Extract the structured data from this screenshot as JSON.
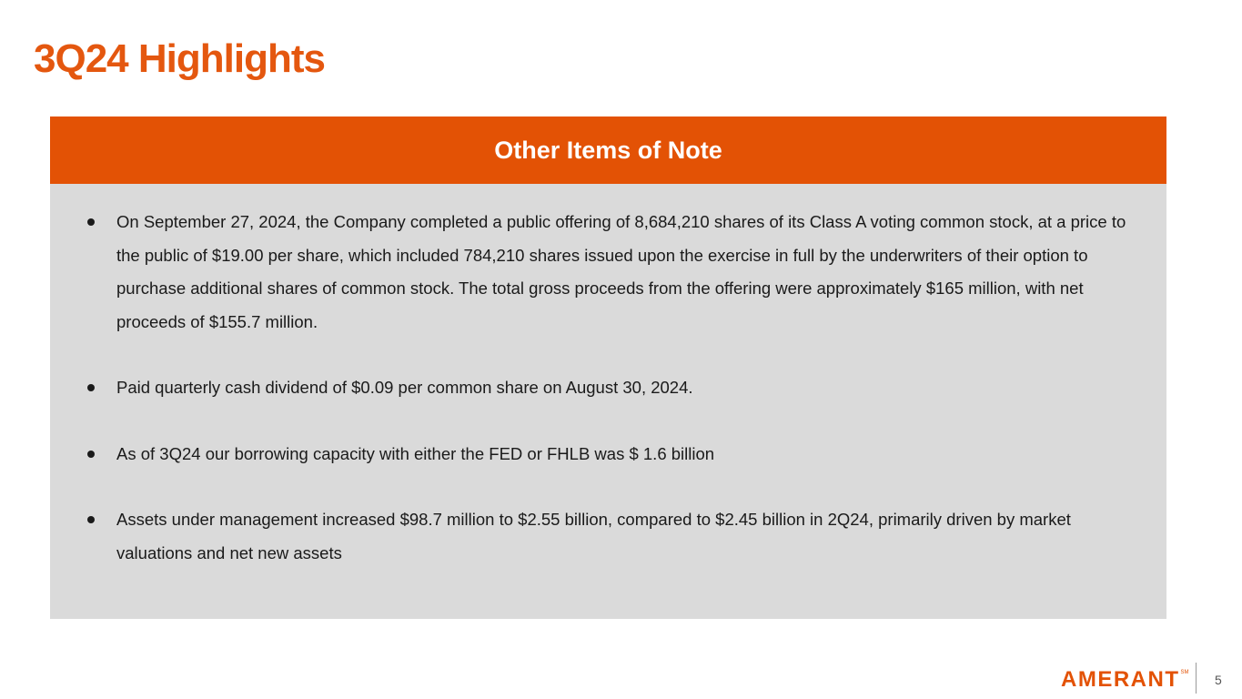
{
  "slide": {
    "title": "3Q24 Highlights",
    "page_number": "5"
  },
  "panel": {
    "header": "Other Items of Note",
    "bullets": [
      "On September 27, 2024, the Company completed a public offering of 8,684,210 shares of its Class A voting common stock, at a price to the public of $19.00 per share, which included 784,210 shares issued upon the exercise in full by the underwriters of their option to purchase additional shares of common stock. The total gross proceeds from the offering were approximately $165 million, with net proceeds of $155.7 million.",
      "Paid quarterly cash dividend of $0.09 per common share on August 30, 2024.",
      "As of 3Q24 our borrowing capacity with either the FED or FHLB was $ 1.6 billion",
      "Assets under management increased $98.7 million to $2.55 billion, compared to $2.45 billion in 2Q24, primarily driven by market valuations and net new assets"
    ]
  },
  "logo": {
    "wordmark": "AMERANT",
    "mark": "SM"
  },
  "colors": {
    "accent": "#e35205",
    "panel_bg": "#dadada"
  }
}
